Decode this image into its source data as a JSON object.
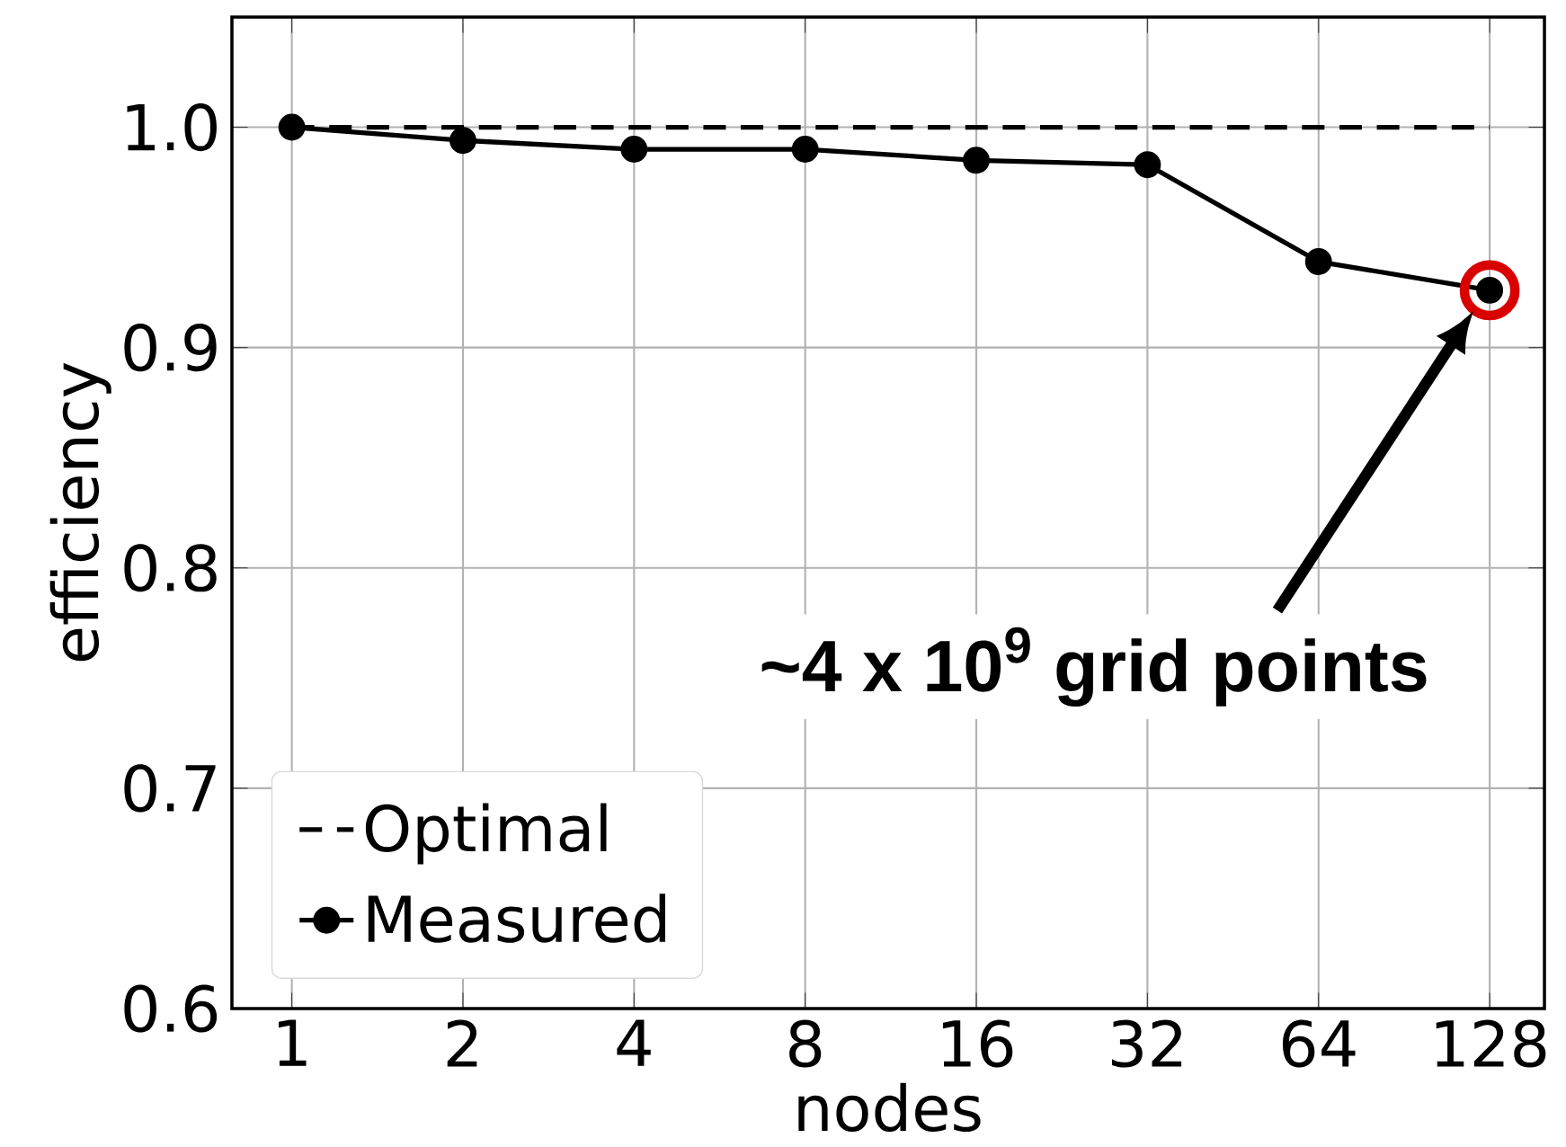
{
  "chart_data": {
    "type": "line",
    "xlabel": "nodes",
    "ylabel": "efficiency",
    "categories": [
      "1",
      "2",
      "4",
      "8",
      "16",
      "32",
      "64",
      "128"
    ],
    "series": [
      {
        "name": "Optimal",
        "color": "#000000",
        "line_style": "dashed",
        "marker": "none",
        "values": [
          1.0,
          1.0,
          1.0,
          1.0,
          1.0,
          1.0,
          1.0,
          1.0
        ]
      },
      {
        "name": "Measured",
        "color": "#000000",
        "line_style": "solid",
        "marker": "circle",
        "values": [
          1.0,
          0.994,
          0.99,
          0.99,
          0.985,
          0.983,
          0.939,
          0.926
        ]
      }
    ],
    "ylim": [
      0.6,
      1.05
    ],
    "yticks": [
      0.6,
      0.7,
      0.8,
      0.9,
      {
        "value": 1.0,
        "label": "1.0"
      }
    ],
    "grid": true,
    "legend": "bottom left",
    "annotations": [
      "~4 x 10$^{9}$ grid points"
    ]
  }
}
